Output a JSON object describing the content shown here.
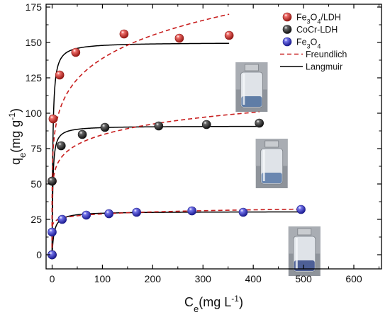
{
  "colors": {
    "fe3o4_ldh": "#e8231d",
    "cocr_ldh": "#1a1a1a",
    "fe3o4": "#2a2ae0",
    "freundlich": "#c81e1e",
    "langmuir": "#000000"
  },
  "axis_title_parts": {
    "x": {
      "main": "C",
      "sub": "e",
      "rest": "(mg L",
      "sup": "-1",
      "close": ")"
    },
    "y": {
      "main": "q",
      "sub": "e",
      "rest": "(mg g",
      "sup": "-1",
      "close": ")"
    }
  },
  "legend": [
    {
      "name": "Fe3O4/LDH",
      "parts": [
        [
          "Fe",
          ""
        ],
        [
          "3",
          "sub"
        ],
        [
          "O",
          ""
        ],
        [
          "4",
          "sub"
        ],
        [
          "/LDH",
          ""
        ]
      ],
      "marker": "sphere",
      "color_key": "fe3o4_ldh"
    },
    {
      "name": "CoCr-LDH",
      "parts": [
        [
          "CoCr-LDH",
          ""
        ]
      ],
      "marker": "sphere",
      "color_key": "cocr_ldh"
    },
    {
      "name": "Fe3O4",
      "parts": [
        [
          "Fe",
          ""
        ],
        [
          "3",
          "sub"
        ],
        [
          "O",
          ""
        ],
        [
          "4",
          "sub"
        ]
      ],
      "marker": "sphere",
      "color_key": "fe3o4"
    },
    {
      "name": "Freundlich",
      "parts": [
        [
          "Freundlich",
          ""
        ]
      ],
      "marker": "dash",
      "color_key": "freundlich"
    },
    {
      "name": "Langmuir",
      "parts": [
        [
          "Langmuir",
          ""
        ]
      ],
      "marker": "line",
      "color_key": "langmuir"
    }
  ],
  "chart_data": {
    "type": "scatter",
    "title": "",
    "xlabel": "Ce(mg L-1)",
    "ylabel": "qe(mg g-1)",
    "xlim": [
      -12,
      655
    ],
    "ylim": [
      -10,
      177
    ],
    "xticks": [
      0,
      100,
      200,
      300,
      400,
      500,
      600
    ],
    "yticks": [
      0,
      25,
      50,
      75,
      100,
      125,
      150,
      175
    ],
    "grid": false,
    "legend_position": "top-right",
    "series": [
      {
        "name": "Fe3O4/LDH",
        "color_key": "fe3o4_ldh",
        "x": [
          0,
          0,
          2,
          15,
          47,
          143,
          253,
          352
        ],
        "y": [
          0,
          52,
          96,
          127,
          143,
          156,
          153,
          155
        ],
        "fits": {
          "langmuir": {
            "qmax": 150,
            "K": 0.7
          },
          "freundlich": {
            "Kf": 66,
            "n": 6.2
          }
        }
      },
      {
        "name": "CoCr-LDH",
        "color_key": "cocr_ldh",
        "x": [
          0,
          0,
          18,
          60,
          105,
          212,
          307,
          412
        ],
        "y": [
          0,
          52,
          77,
          85,
          90,
          91,
          92,
          93
        ],
        "fits": {
          "langmuir": {
            "qmax": 91,
            "K": 0.75
          },
          "freundlich": {
            "Kf": 48,
            "n": 8.1
          }
        }
      },
      {
        "name": "Fe3O4",
        "color_key": "fe3o4",
        "x": [
          0,
          0,
          20,
          68,
          113,
          168,
          278,
          380,
          495
        ],
        "y": [
          0,
          16,
          25,
          28,
          29,
          30,
          31,
          30,
          32
        ],
        "fits": {
          "langmuir": {
            "qmax": 30.5,
            "K": 0.25
          },
          "freundlich": {
            "Kf": 21,
            "n": 14.5
          }
        }
      }
    ]
  },
  "photos": [
    {
      "name": "vial-photo-fe3o4-ldh",
      "anchor_x": 365,
      "anchor_y": 136,
      "liquid": "#5f7da6"
    },
    {
      "name": "vial-photo-cocr-ldh",
      "anchor_x": 405,
      "anchor_y": 82,
      "liquid": "#6a87b0"
    },
    {
      "name": "vial-photo-fe3o4",
      "anchor_x": 470,
      "anchor_y": 20,
      "liquid": "#4d5f96"
    }
  ]
}
